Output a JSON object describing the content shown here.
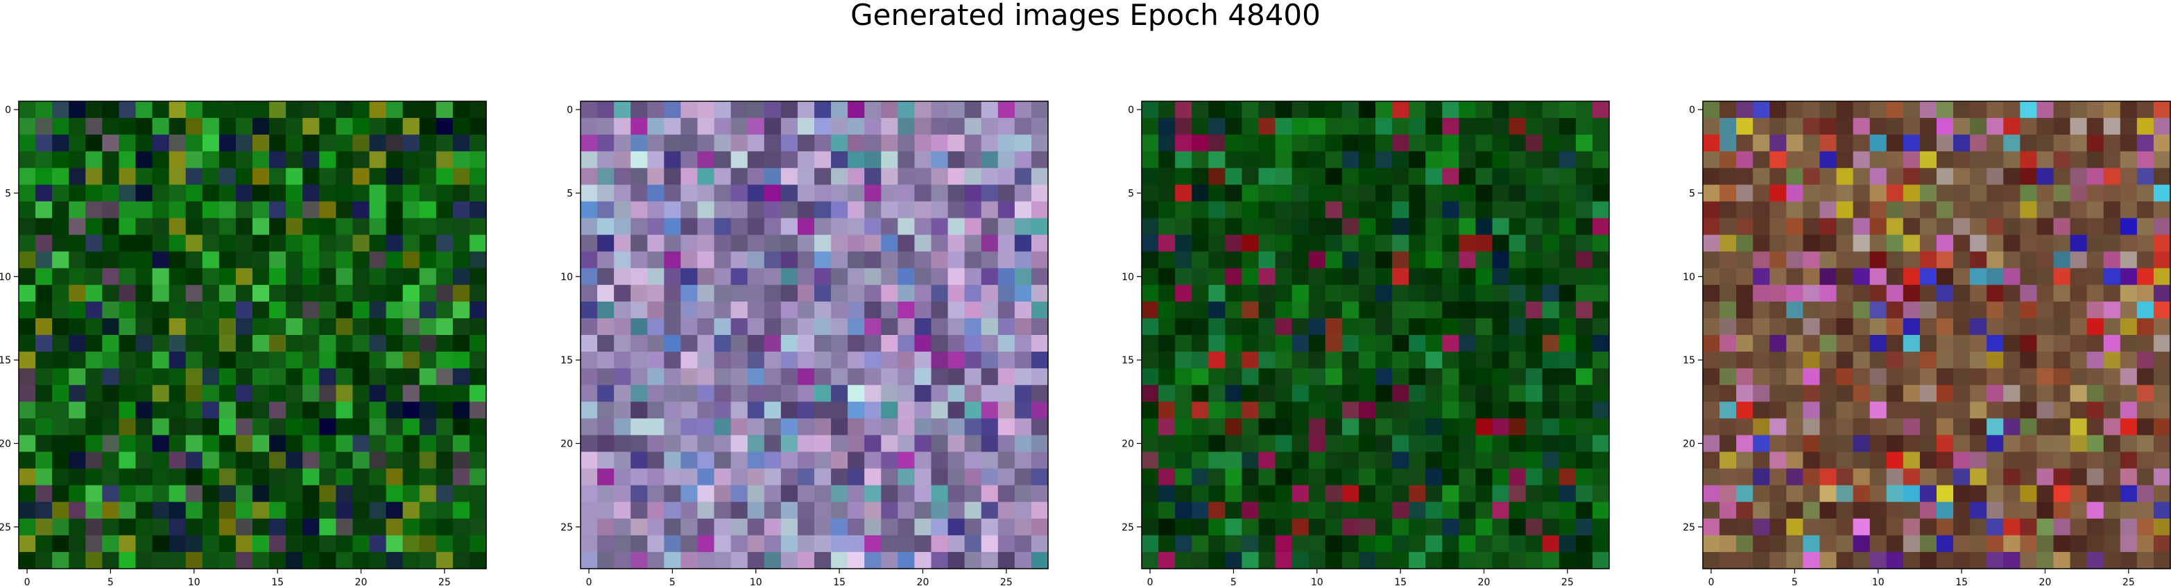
{
  "figure": {
    "title": "Generated images Epoch 48400"
  },
  "chart_data": [
    {
      "type": "heatmap",
      "title": "",
      "xlabel": "",
      "ylabel": "",
      "x_ticks": [
        0,
        5,
        10,
        15,
        20,
        25
      ],
      "y_ticks": [
        0,
        5,
        10,
        15,
        20,
        25
      ],
      "xlim": [
        -0.5,
        27.5
      ],
      "ylim": [
        27.5,
        -0.5
      ],
      "grid_size": [
        28,
        28
      ],
      "grid": false,
      "palette": {
        "base": "#0a5a0e",
        "dark": "#041a06",
        "accents": [
          "#15a21c",
          "#2fbf3a",
          "#0a7a10",
          "#10104a",
          "#2a2a6a",
          "#8a8a14",
          "#6a4a6a",
          "#44c24a"
        ]
      },
      "dominant_color_description": "mostly green and dark green pixel noise"
    },
    {
      "type": "heatmap",
      "title": "",
      "xlabel": "",
      "ylabel": "",
      "x_ticks": [
        0,
        5,
        10,
        15,
        20,
        25
      ],
      "y_ticks": [
        0,
        5,
        10,
        15,
        20,
        25
      ],
      "xlim": [
        -0.5,
        27.5
      ],
      "ylim": [
        27.5,
        -0.5
      ],
      "grid_size": [
        28,
        28
      ],
      "grid": false,
      "palette": {
        "base": "#b6a6d6",
        "dark": "#1a1030",
        "accents": [
          "#9ec4d8",
          "#d6a6d6",
          "#8a8ad0",
          "#c0e0e0",
          "#6a4a9a",
          "#e0c0e8",
          "#3a3a8a",
          "#b08ab0",
          "#44a0a0",
          "#a020a0",
          "#5a8ad0"
        ]
      },
      "dominant_color_description": "pastel lavender, light blue and pink pixel noise"
    },
    {
      "type": "heatmap",
      "title": "",
      "xlabel": "",
      "ylabel": "",
      "x_ticks": [
        0,
        5,
        10,
        15,
        20,
        25
      ],
      "y_ticks": [
        0,
        5,
        10,
        15,
        20,
        25
      ],
      "xlim": [
        -0.5,
        27.5
      ],
      "ylim": [
        27.5,
        -0.5
      ],
      "grid_size": [
        28,
        28
      ],
      "grid": false,
      "palette": {
        "base": "#0b5a10",
        "dark": "#031606",
        "accents": [
          "#0e8a16",
          "#0a6a10",
          "#062a0a",
          "#0a2a4a",
          "#a0105a",
          "#c0101a",
          "#1a8a4a",
          "#0a4a1a"
        ]
      },
      "dominant_color_description": "green and dark green pixel noise with a few red and magenta pixels"
    },
    {
      "type": "heatmap",
      "title": "",
      "xlabel": "",
      "ylabel": "",
      "x_ticks": [
        0,
        5,
        10,
        15,
        20,
        25
      ],
      "y_ticks": [
        0,
        5,
        10,
        15,
        20,
        25
      ],
      "xlim": [
        -0.5,
        27.5
      ],
      "ylim": [
        27.5,
        -0.5
      ],
      "grid_size": [
        28,
        28
      ],
      "grid": false,
      "palette": {
        "base": "#8a6a4a",
        "dark": "#2a0a0a",
        "accents": [
          "#c0a060",
          "#a04a2a",
          "#7a1a1a",
          "#c060a0",
          "#5a1aa0",
          "#2a2ad0",
          "#e02a20",
          "#d0c020",
          "#40c0e0",
          "#c080c0",
          "#6a8a4a",
          "#b0a0a0",
          "#e070e0"
        ]
      },
      "dominant_color_description": "multicolored pixel noise: browns, reds, purples, blues, yellows"
    }
  ]
}
